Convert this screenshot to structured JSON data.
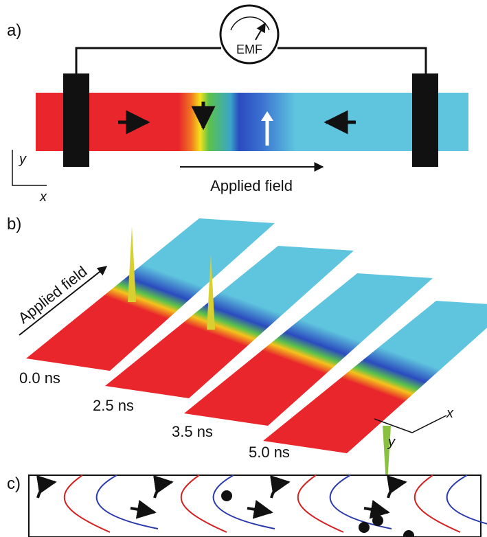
{
  "panels": {
    "a": {
      "label": "a)",
      "meter": "EMF",
      "axis_y": "y",
      "axis_x": "x",
      "field_label": "Applied field"
    },
    "b": {
      "label": "b)",
      "field_label": "Applied field",
      "times": [
        "0.0 ns",
        "2.5 ns",
        "3.5 ns",
        "5.0 ns"
      ],
      "axis_y": "y",
      "axis_x": "x"
    },
    "c": {
      "label": "c)"
    }
  }
}
